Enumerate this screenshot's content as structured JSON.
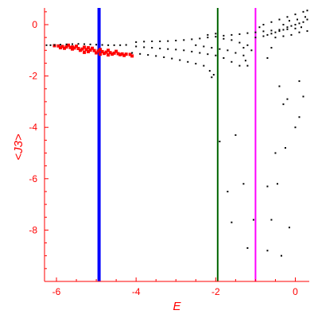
{
  "chart_data": {
    "type": "scatter",
    "title": "",
    "xlabel": "E",
    "ylabel": "<J3>",
    "xlim": [
      -6.3,
      0.35
    ],
    "ylim": [
      -10.0,
      0.65
    ],
    "xticks": [
      -6,
      -4,
      -2,
      0
    ],
    "yticks": [
      0,
      -2,
      -4,
      -6,
      -8
    ],
    "axis_color": "#ff0000",
    "grid": false,
    "vertical_lines": [
      {
        "x": -4.93,
        "color": "#0000ff"
      },
      {
        "x": -1.95,
        "color": "#006400"
      },
      {
        "x": -1.0,
        "color": "#ff00ff"
      }
    ],
    "series": [
      {
        "color": "#ff0000",
        "points": [
          [
            -6.05,
            -0.82
          ],
          [
            -5.95,
            -0.83
          ],
          [
            -5.85,
            -0.85
          ],
          [
            -5.75,
            -0.87
          ],
          [
            -5.65,
            -0.89
          ],
          [
            -5.55,
            -0.91
          ],
          [
            -5.45,
            -0.93
          ],
          [
            -5.35,
            -0.95
          ],
          [
            -5.25,
            -0.97
          ],
          [
            -5.15,
            -0.99
          ],
          [
            -5.05,
            -1.01
          ],
          [
            -4.95,
            -1.03
          ],
          [
            -4.85,
            -1.05
          ],
          [
            -4.75,
            -1.07
          ],
          [
            -4.65,
            -1.09
          ],
          [
            -4.55,
            -1.11
          ],
          [
            -4.45,
            -1.13
          ],
          [
            -4.35,
            -1.14
          ],
          [
            -4.25,
            -1.15
          ],
          [
            -4.15,
            -1.16
          ],
          [
            -5.8,
            -0.92
          ],
          [
            -5.6,
            -0.95
          ],
          [
            -5.4,
            -1.0
          ],
          [
            -5.2,
            -1.05
          ],
          [
            -5.0,
            -1.1
          ],
          [
            -4.8,
            -1.12
          ],
          [
            -4.6,
            -1.15
          ],
          [
            -4.4,
            -1.17
          ],
          [
            -5.7,
            -0.8
          ],
          [
            -5.5,
            -0.84
          ],
          [
            -5.3,
            -0.88
          ],
          [
            -5.1,
            -0.92
          ],
          [
            -4.9,
            -0.97
          ],
          [
            -4.7,
            -1.0
          ],
          [
            -4.5,
            -1.04
          ],
          [
            -5.9,
            -0.9
          ],
          [
            -5.3,
            -1.08
          ],
          [
            -4.7,
            -1.18
          ],
          [
            -5.6,
            -0.87
          ],
          [
            -5.2,
            -0.9
          ],
          [
            -4.9,
            -1.15
          ],
          [
            -4.3,
            -1.2
          ],
          [
            -4.1,
            -1.22
          ]
        ]
      },
      {
        "color": "#000000",
        "points": [
          [
            -6.25,
            -0.8
          ],
          [
            -6.15,
            -0.8
          ],
          [
            -6.05,
            -0.79
          ],
          [
            -5.9,
            -0.78
          ],
          [
            -5.75,
            -0.77
          ],
          [
            -5.6,
            -0.76
          ],
          [
            -5.45,
            -0.75
          ],
          [
            -5.3,
            -0.76
          ],
          [
            -5.15,
            -0.77
          ],
          [
            -5.0,
            -0.78
          ],
          [
            -4.85,
            -0.79
          ],
          [
            -4.7,
            -0.8
          ],
          [
            -4.55,
            -0.8
          ],
          [
            -4.4,
            -0.8
          ],
          [
            -4.25,
            -0.79
          ],
          [
            -4.0,
            -0.68
          ],
          [
            -3.8,
            -0.66
          ],
          [
            -3.6,
            -0.65
          ],
          [
            -3.4,
            -0.65
          ],
          [
            -3.2,
            -0.64
          ],
          [
            -3.0,
            -0.62
          ],
          [
            -2.8,
            -0.6
          ],
          [
            -2.6,
            -0.57
          ],
          [
            -2.4,
            -0.54
          ],
          [
            -2.2,
            -0.5
          ],
          [
            -2.0,
            -0.47
          ],
          [
            -1.8,
            -0.43
          ],
          [
            -1.6,
            -0.4
          ],
          [
            -1.4,
            -0.37
          ],
          [
            -1.2,
            -0.33
          ],
          [
            -1.0,
            -0.3
          ],
          [
            -0.8,
            -0.26
          ],
          [
            -0.6,
            -0.23
          ],
          [
            -0.4,
            -0.2
          ],
          [
            -0.2,
            -0.18
          ],
          [
            0.0,
            -0.15
          ],
          [
            -4.0,
            -0.85
          ],
          [
            -3.8,
            -0.88
          ],
          [
            -3.6,
            -0.9
          ],
          [
            -3.4,
            -0.93
          ],
          [
            -3.2,
            -0.95
          ],
          [
            -3.0,
            -0.97
          ],
          [
            -2.8,
            -1.0
          ],
          [
            -2.6,
            -1.05
          ],
          [
            -2.4,
            -1.1
          ],
          [
            -2.2,
            -1.15
          ],
          [
            -4.1,
            -1.1
          ],
          [
            -3.9,
            -1.14
          ],
          [
            -3.7,
            -1.18
          ],
          [
            -3.5,
            -1.22
          ],
          [
            -3.3,
            -1.27
          ],
          [
            -3.1,
            -1.32
          ],
          [
            -2.9,
            -1.38
          ],
          [
            -2.7,
            -1.45
          ],
          [
            -2.5,
            -1.52
          ],
          [
            -2.3,
            -1.6
          ],
          [
            -2.15,
            -1.8
          ],
          [
            -2.1,
            -2.05
          ],
          [
            -2.05,
            -1.95
          ],
          [
            -2.5,
            -0.8
          ],
          [
            -2.3,
            -0.85
          ],
          [
            -2.1,
            -0.9
          ],
          [
            -1.9,
            -0.95
          ],
          [
            -1.7,
            -1.0
          ],
          [
            -1.5,
            -1.1
          ],
          [
            -1.3,
            -1.2
          ],
          [
            -2.0,
            -1.2
          ],
          [
            -1.8,
            -1.3
          ],
          [
            -1.6,
            -1.45
          ],
          [
            -1.4,
            -1.6
          ],
          [
            -2.2,
            -0.4
          ],
          [
            -2.0,
            -0.35
          ],
          [
            -1.8,
            -0.55
          ],
          [
            -1.6,
            -0.6
          ],
          [
            -1.4,
            -0.7
          ],
          [
            -1.2,
            -0.8
          ],
          [
            -1.0,
            -0.5
          ],
          [
            -0.8,
            -0.45
          ],
          [
            -0.7,
            -0.4
          ],
          [
            -0.6,
            -0.35
          ],
          [
            -0.5,
            -0.3
          ],
          [
            -0.4,
            -0.25
          ],
          [
            -0.3,
            -0.2
          ],
          [
            -0.2,
            -0.1
          ],
          [
            -0.1,
            -0.05
          ],
          [
            0.0,
            0.0
          ],
          [
            0.1,
            0.05
          ],
          [
            0.2,
            0.1
          ],
          [
            0.3,
            0.2
          ],
          [
            -0.9,
            -0.1
          ],
          [
            -0.8,
            0.0
          ],
          [
            -0.6,
            0.1
          ],
          [
            -0.4,
            0.2
          ],
          [
            -0.2,
            0.3
          ],
          [
            0.0,
            0.4
          ],
          [
            0.2,
            0.5
          ],
          [
            -0.5,
            -0.5
          ],
          [
            -0.3,
            -0.45
          ],
          [
            -0.1,
            -0.4
          ],
          [
            0.1,
            -0.3
          ],
          [
            0.3,
            -0.25
          ],
          [
            -0.3,
            0.0
          ],
          [
            -0.15,
            0.15
          ],
          [
            0.05,
            0.2
          ],
          [
            0.15,
            -0.1
          ],
          [
            0.25,
            0.3
          ],
          [
            0.3,
            0.55
          ],
          [
            -1.3,
            -0.9
          ],
          [
            -1.25,
            -1.4
          ],
          [
            -1.2,
            -1.6
          ],
          [
            -1.1,
            -1.0
          ],
          [
            -0.7,
            -1.3
          ],
          [
            -0.6,
            -0.9
          ],
          [
            -0.4,
            -2.4
          ],
          [
            -0.2,
            -2.9
          ],
          [
            0.1,
            -2.2
          ],
          [
            -0.3,
            -3.1
          ],
          [
            0.1,
            -3.6
          ],
          [
            0.0,
            -4.0
          ],
          [
            0.2,
            -2.8
          ],
          [
            -1.5,
            -4.3
          ],
          [
            -1.9,
            -4.55
          ],
          [
            -1.7,
            -6.5
          ],
          [
            -1.6,
            -7.7
          ],
          [
            -1.3,
            -6.2
          ],
          [
            -1.05,
            -7.6
          ],
          [
            -1.2,
            -8.7
          ],
          [
            -0.7,
            -6.3
          ],
          [
            -0.5,
            -5.0
          ],
          [
            -0.6,
            -7.6
          ],
          [
            -0.45,
            -6.2
          ],
          [
            -0.25,
            -4.8
          ],
          [
            -0.15,
            -7.9
          ],
          [
            -0.35,
            -9.0
          ],
          [
            -0.7,
            -8.8
          ]
        ]
      }
    ]
  }
}
